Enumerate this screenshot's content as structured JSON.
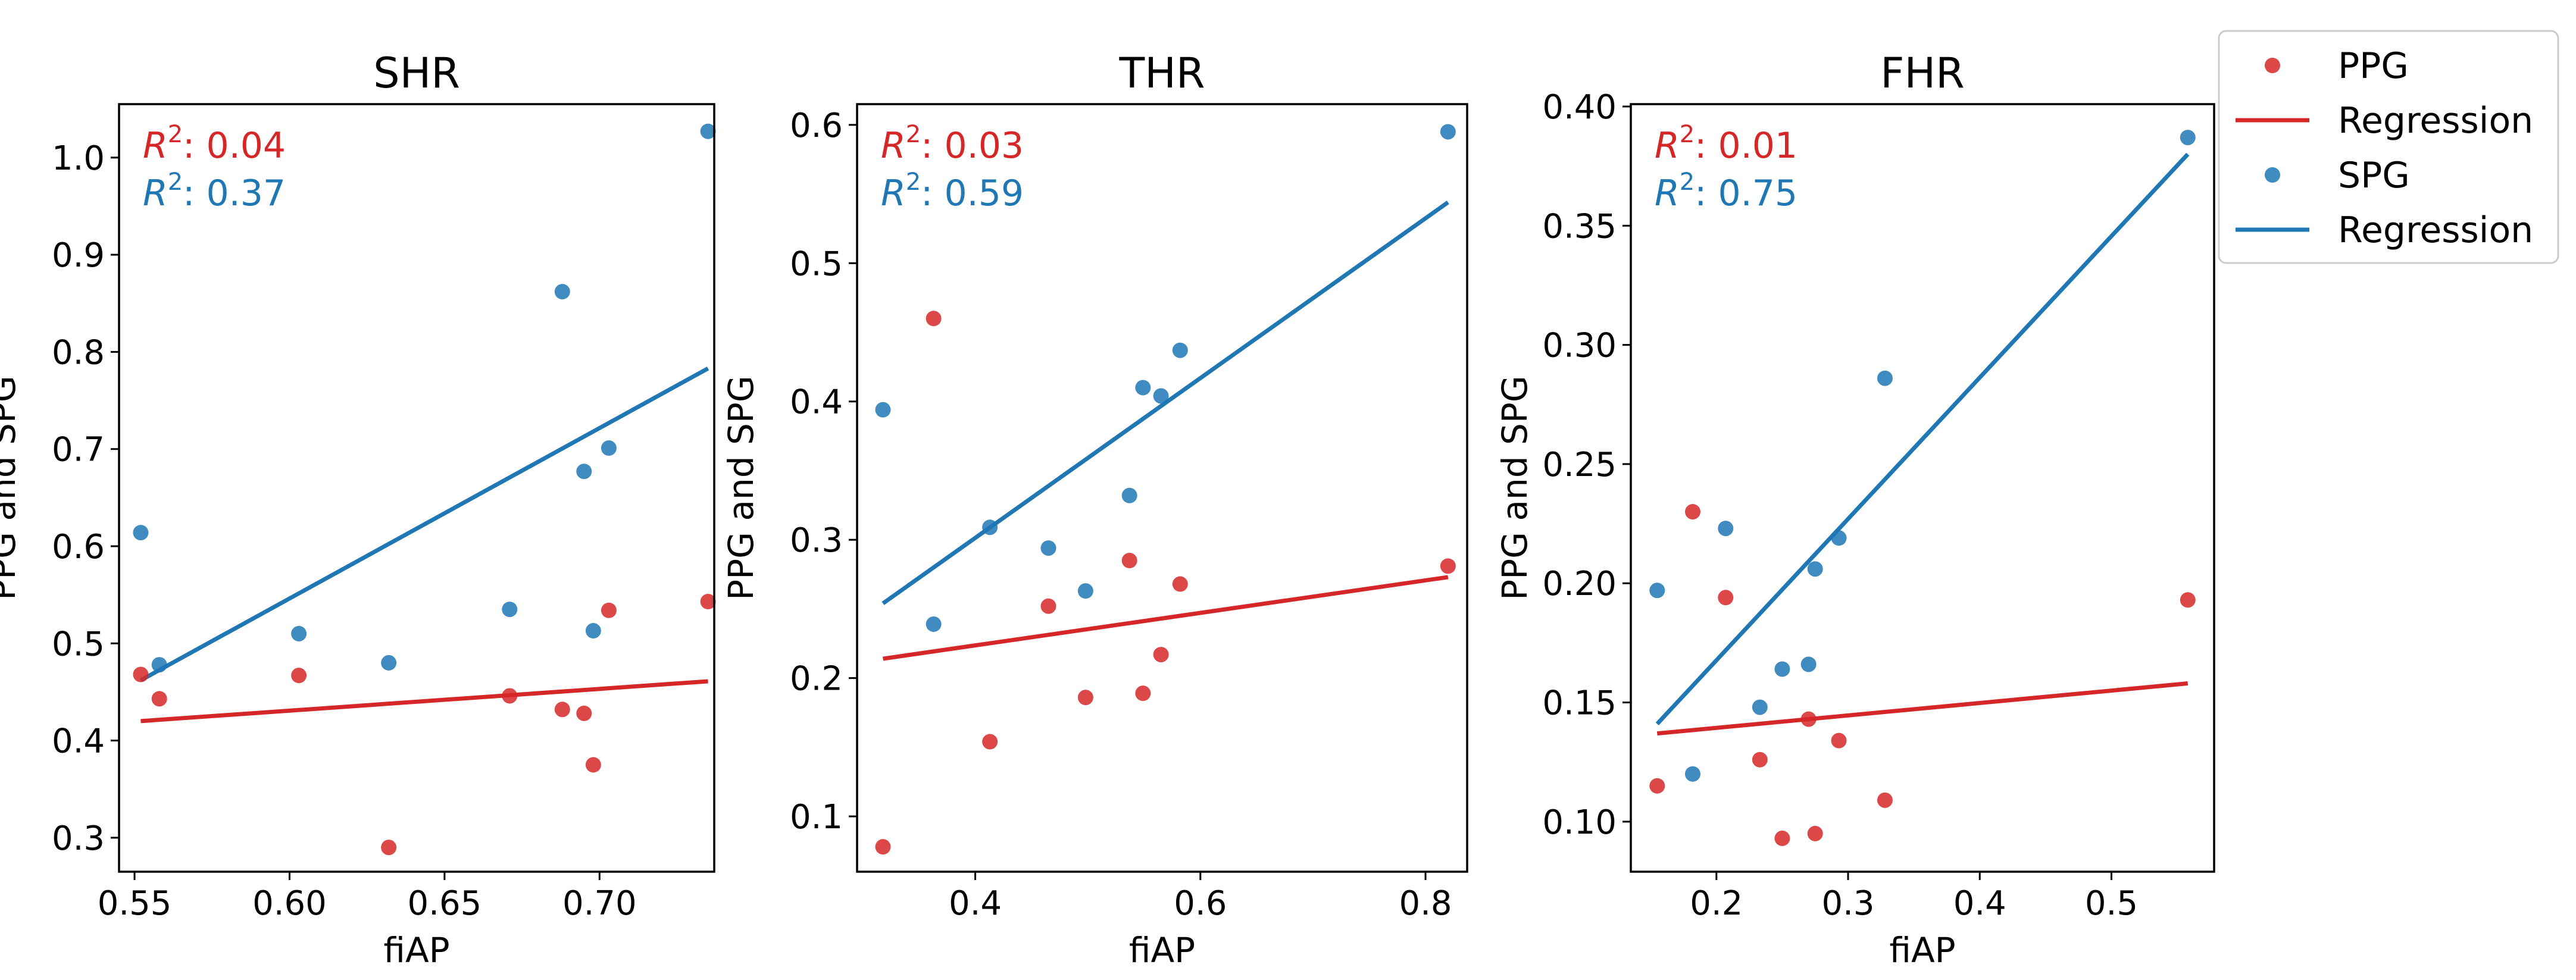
{
  "colors": {
    "ppg": "#d62728",
    "spg": "#1f77b4"
  },
  "legend": {
    "location": "upper right, outside",
    "entries": [
      {
        "label": "PPG",
        "kind": "marker",
        "series": "ppg"
      },
      {
        "label": "Regression",
        "kind": "line",
        "series": "ppg"
      },
      {
        "label": "SPG",
        "kind": "marker",
        "series": "spg"
      },
      {
        "label": "Regression",
        "kind": "line",
        "series": "spg"
      }
    ]
  },
  "chart_data": [
    {
      "type": "scatter",
      "title": "SHR",
      "xlabel": "fiAP",
      "ylabel": "PPG and SPG",
      "xlim": [
        0.545,
        0.737
      ],
      "ylim": [
        0.265,
        1.055
      ],
      "xticks": [
        0.55,
        0.6,
        0.65,
        0.7
      ],
      "xtick_labels": [
        "0.55",
        "0.60",
        "0.65",
        "0.70"
      ],
      "yticks": [
        0.3,
        0.4,
        0.5,
        0.6,
        0.7,
        0.8,
        0.9,
        1.0
      ],
      "ytick_labels": [
        "0.3",
        "0.4",
        "0.5",
        "0.6",
        "0.7",
        "0.8",
        "0.9",
        "1.0"
      ],
      "r2": [
        {
          "series": "ppg",
          "label": "R",
          "sup": "2",
          "value": ": 0.04"
        },
        {
          "series": "spg",
          "label": "R",
          "sup": "2",
          "value": ": 0.37"
        }
      ],
      "series": [
        {
          "name": "PPG",
          "key": "ppg",
          "x": [
            0.552,
            0.558,
            0.603,
            0.632,
            0.671,
            0.688,
            0.695,
            0.698,
            0.703,
            0.735
          ],
          "y": [
            0.468,
            0.443,
            0.467,
            0.29,
            0.446,
            0.432,
            0.428,
            0.375,
            0.534,
            0.543
          ],
          "regression": {
            "x": [
              0.552,
              0.735
            ],
            "y": [
              0.42,
              0.461
            ]
          }
        },
        {
          "name": "SPG",
          "key": "spg",
          "x": [
            0.552,
            0.558,
            0.603,
            0.632,
            0.671,
            0.688,
            0.695,
            0.698,
            0.703,
            0.735
          ],
          "y": [
            0.614,
            0.478,
            0.51,
            0.48,
            0.535,
            0.862,
            0.677,
            0.513,
            0.701,
            1.027
          ],
          "regression": {
            "x": [
              0.552,
              0.735
            ],
            "y": [
              0.462,
              0.783
            ]
          }
        }
      ]
    },
    {
      "type": "scatter",
      "title": "THR",
      "xlabel": "fiAP",
      "ylabel": "PPG and SPG",
      "xlim": [
        0.295,
        0.837
      ],
      "ylim": [
        0.06,
        0.615
      ],
      "xticks": [
        0.4,
        0.6,
        0.8
      ],
      "xtick_labels": [
        "0.4",
        "0.6",
        "0.8"
      ],
      "yticks": [
        0.1,
        0.2,
        0.3,
        0.4,
        0.5,
        0.6
      ],
      "ytick_labels": [
        "0.1",
        "0.2",
        "0.3",
        "0.4",
        "0.5",
        "0.6"
      ],
      "r2": [
        {
          "series": "ppg",
          "label": "R",
          "sup": "2",
          "value": ": 0.03"
        },
        {
          "series": "spg",
          "label": "R",
          "sup": "2",
          "value": ": 0.59"
        }
      ],
      "series": [
        {
          "name": "PPG",
          "key": "ppg",
          "x": [
            0.318,
            0.363,
            0.413,
            0.465,
            0.498,
            0.537,
            0.549,
            0.565,
            0.582,
            0.82
          ],
          "y": [
            0.078,
            0.46,
            0.154,
            0.252,
            0.186,
            0.285,
            0.189,
            0.217,
            0.268,
            0.281
          ],
          "regression": {
            "x": [
              0.318,
              0.82
            ],
            "y": [
              0.214,
              0.273
            ]
          }
        },
        {
          "name": "SPG",
          "key": "spg",
          "x": [
            0.318,
            0.363,
            0.413,
            0.465,
            0.498,
            0.537,
            0.549,
            0.565,
            0.582,
            0.82
          ],
          "y": [
            0.394,
            0.239,
            0.309,
            0.294,
            0.263,
            0.332,
            0.41,
            0.404,
            0.437,
            0.595
          ],
          "regression": {
            "x": [
              0.318,
              0.82
            ],
            "y": [
              0.254,
              0.544
            ]
          }
        }
      ]
    },
    {
      "type": "scatter",
      "title": "FHR",
      "xlabel": "fiAP",
      "ylabel": "PPG and SPG",
      "xlim": [
        0.135,
        0.578
      ],
      "ylim": [
        0.079,
        0.401
      ],
      "xticks": [
        0.2,
        0.3,
        0.4,
        0.5
      ],
      "xtick_labels": [
        "0.2",
        "0.3",
        "0.4",
        "0.5"
      ],
      "yticks": [
        0.1,
        0.15,
        0.2,
        0.25,
        0.3,
        0.35,
        0.4
      ],
      "ytick_labels": [
        "0.10",
        "0.15",
        "0.20",
        "0.25",
        "0.30",
        "0.35",
        "0.40"
      ],
      "r2": [
        {
          "series": "ppg",
          "label": "R",
          "sup": "2",
          "value": ": 0.01"
        },
        {
          "series": "spg",
          "label": "R",
          "sup": "2",
          "value": ": 0.75"
        }
      ],
      "series": [
        {
          "name": "PPG",
          "key": "ppg",
          "x": [
            0.155,
            0.182,
            0.207,
            0.233,
            0.25,
            0.27,
            0.275,
            0.293,
            0.328,
            0.558
          ],
          "y": [
            0.115,
            0.23,
            0.194,
            0.126,
            0.093,
            0.143,
            0.095,
            0.134,
            0.109,
            0.193
          ],
          "regression": {
            "x": [
              0.155,
              0.558
            ],
            "y": [
              0.137,
              0.158
            ]
          }
        },
        {
          "name": "SPG",
          "key": "spg",
          "x": [
            0.155,
            0.182,
            0.207,
            0.233,
            0.25,
            0.27,
            0.275,
            0.293,
            0.328,
            0.558
          ],
          "y": [
            0.197,
            0.12,
            0.223,
            0.148,
            0.164,
            0.166,
            0.206,
            0.219,
            0.286,
            0.387
          ],
          "regression": {
            "x": [
              0.155,
              0.558
            ],
            "y": [
              0.141,
              0.38
            ]
          }
        }
      ]
    }
  ]
}
